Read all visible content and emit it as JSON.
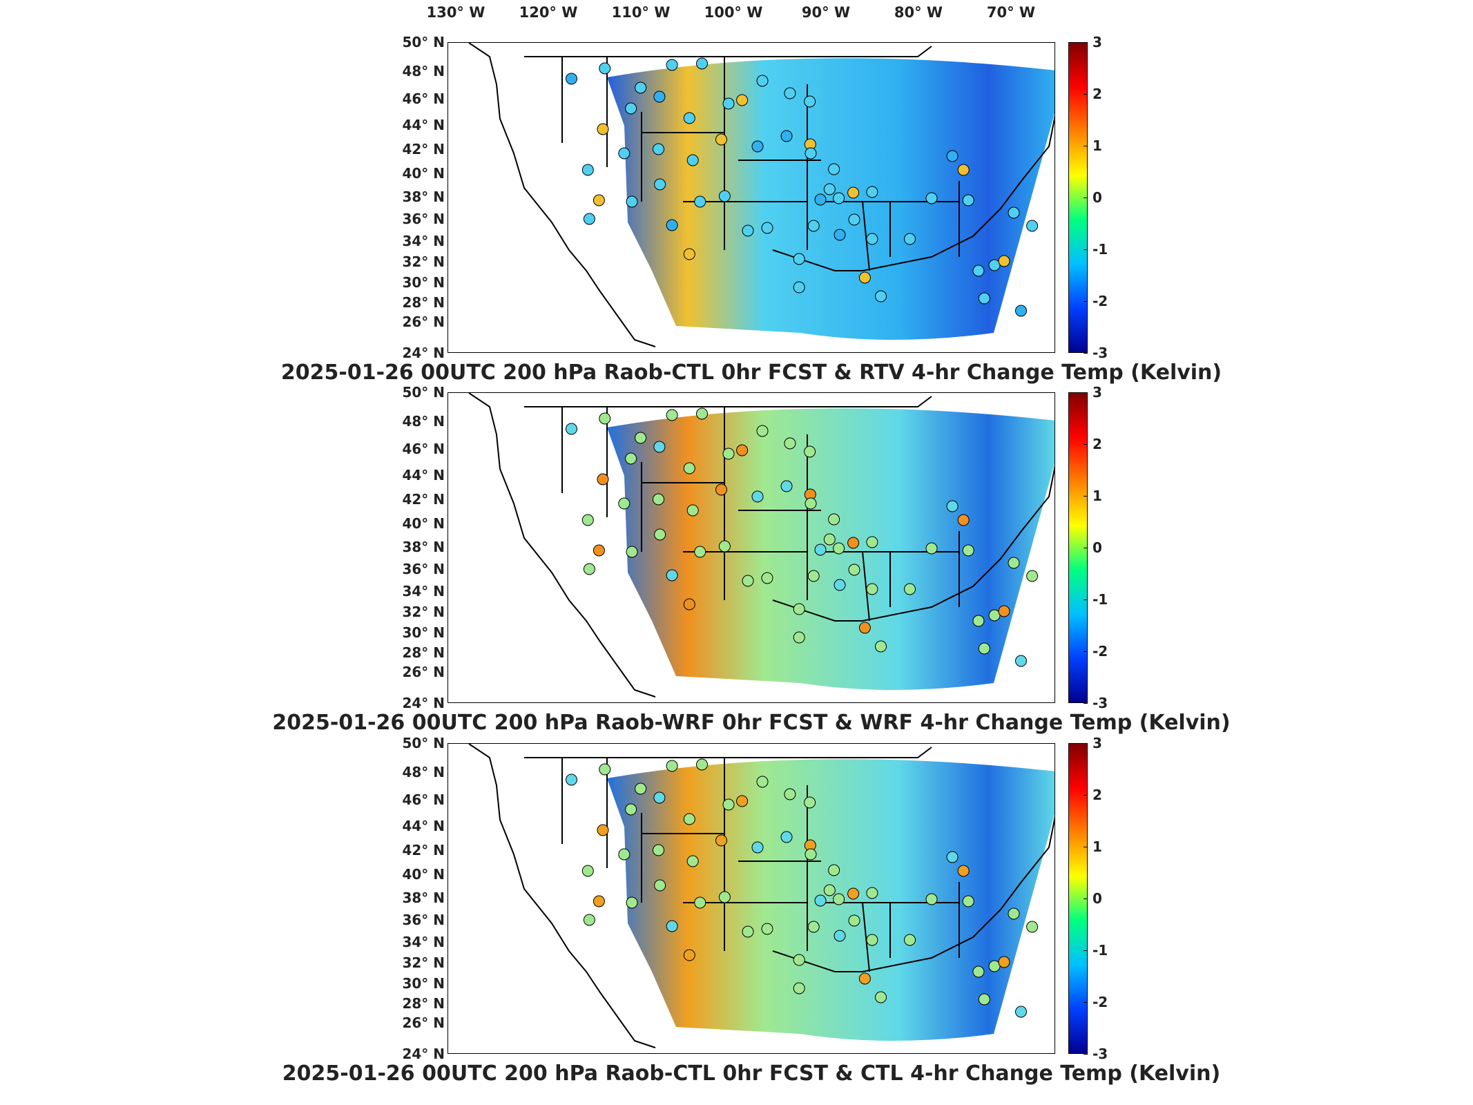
{
  "lon_labels": [
    "130° W",
    "120° W",
    "110° W",
    "100° W",
    "90° W",
    "80° W",
    "70° W"
  ],
  "lat_labels": [
    "50° N",
    "48° N",
    "46° N",
    "44° N",
    "42° N",
    "40° N",
    "38° N",
    "36° N",
    "34° N",
    "32° N",
    "30° N",
    "28° N",
    "26° N",
    "24° N"
  ],
  "colorbar": {
    "ticks": [
      "3",
      "2",
      "1",
      "0",
      "-1",
      "-2",
      "-3"
    ],
    "colormap": [
      "#800000",
      "#ff0000",
      "#ff8000",
      "#ffff00",
      "#00ff80",
      "#00c0ff",
      "#0040ff",
      "#000090"
    ]
  },
  "panels": [
    {
      "title": "2025-01-26 00UTC 200 hPa Raob-CTL 0hr FCST & RTV 4-hr Change Temp (Kelvin)"
    },
    {
      "title": "2025-01-26 00UTC 200 hPa Raob-WRF 0hr FCST & WRF 4-hr Change Temp (Kelvin)"
    },
    {
      "title": "2025-01-26 00UTC 200 hPa Raob-CTL 0hr FCST & CTL 4-hr Change Temp (Kelvin)"
    }
  ]
}
